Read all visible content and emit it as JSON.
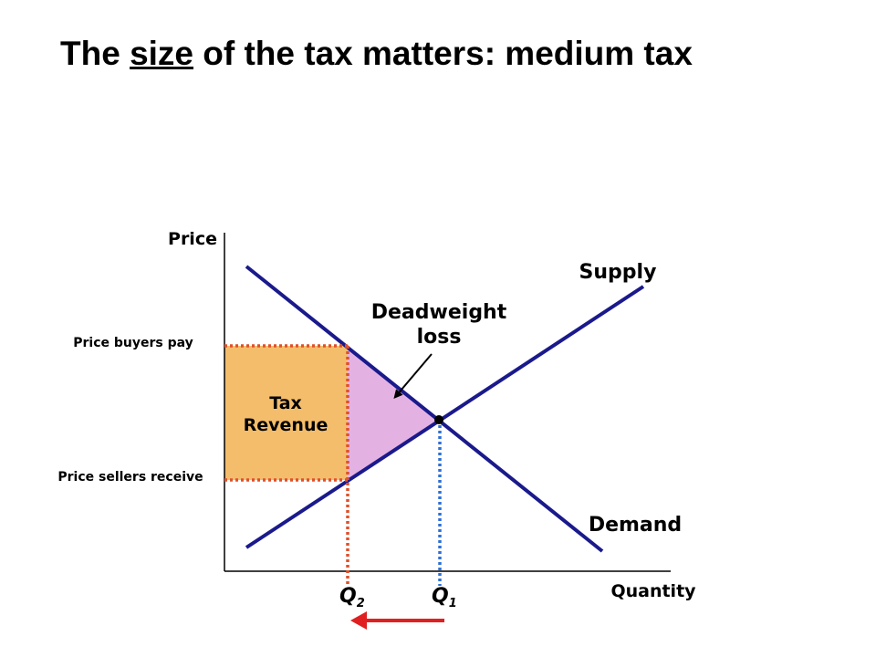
{
  "title": {
    "before": "The",
    "emphasis": "size",
    "after": "of the tax matters: medium tax"
  },
  "diagram": {
    "y_axis_label": "Price",
    "x_axis_label": "Quantity",
    "supply_label": "Supply",
    "demand_label": "Demand",
    "deadweight_label": [
      "Deadweight",
      "loss"
    ],
    "tax_revenue_label": [
      "Tax",
      "Revenue"
    ],
    "price_buyers_pay": "Price buyers pay",
    "price_sellers_receive": "Price sellers receive",
    "q2": {
      "letter": "Q",
      "subscript": "2"
    },
    "q1": {
      "letter": "Q",
      "subscript": "1"
    }
  }
}
